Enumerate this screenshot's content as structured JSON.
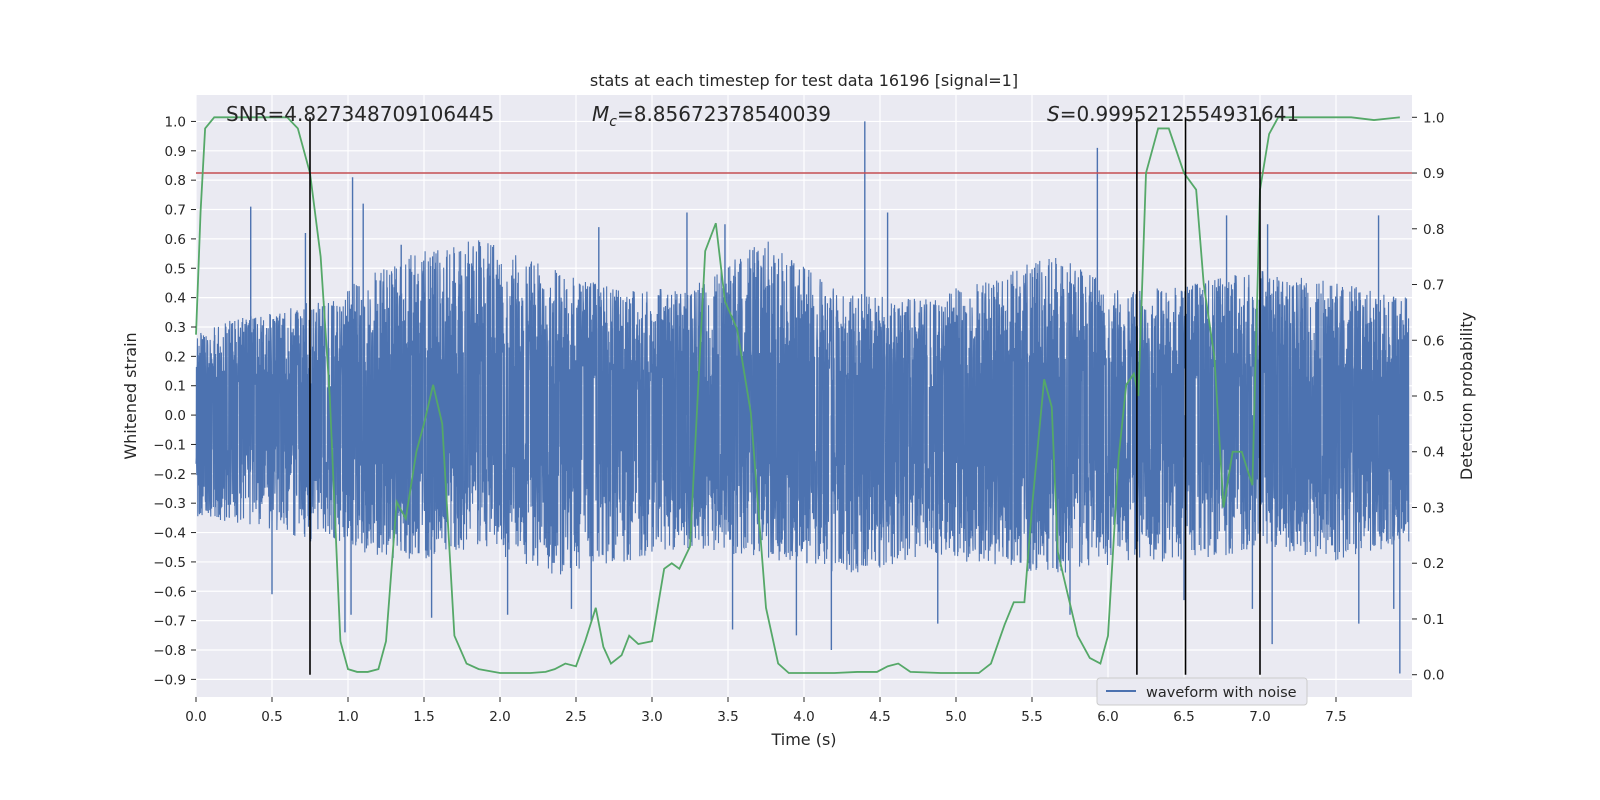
{
  "chart_data": {
    "type": "line",
    "title": "stats at each timestep for test data 16196 [signal=1]",
    "xlabel": "Time (s)",
    "ylabel": "Whitened strain",
    "y2label": "Detection probability",
    "xlim": [
      0.0,
      8.0
    ],
    "ylim": [
      -0.96,
      1.09
    ],
    "y2lim": [
      -0.04,
      1.04
    ],
    "xticks": [
      0.0,
      0.5,
      1.0,
      1.5,
      2.0,
      2.5,
      3.0,
      3.5,
      4.0,
      4.5,
      5.0,
      5.5,
      6.0,
      6.5,
      7.0,
      7.5
    ],
    "xtick_labels": [
      "0.0",
      "0.5",
      "1.0",
      "1.5",
      "2.0",
      "2.5",
      "3.0",
      "3.5",
      "4.0",
      "4.5",
      "5.0",
      "5.5",
      "6.0",
      "6.5",
      "7.0",
      "7.5"
    ],
    "yticks": [
      1.0,
      0.9,
      0.8,
      0.7,
      0.6,
      0.5,
      0.4,
      0.3,
      0.2,
      0.1,
      0.0,
      -0.1,
      -0.2,
      -0.3,
      -0.4,
      -0.5,
      -0.6,
      -0.7,
      -0.8,
      -0.9
    ],
    "ytick_labels": [
      "1.0",
      "0.9",
      "0.8",
      "0.7",
      "0.6",
      "0.5",
      "0.4",
      "0.3",
      "0.2",
      "0.1",
      "0.0",
      "−0.1",
      "−0.2",
      "−0.3",
      "−0.4",
      "−0.5",
      "−0.6",
      "−0.7",
      "−0.8",
      "−0.9"
    ],
    "y2ticks": [
      1.0,
      0.9,
      0.8,
      0.7,
      0.6,
      0.5,
      0.4,
      0.3,
      0.2,
      0.1,
      0.0
    ],
    "y2tick_labels": [
      "1.0",
      "0.9",
      "0.8",
      "0.7",
      "0.6",
      "0.5",
      "0.4",
      "0.3",
      "0.2",
      "0.1",
      "0.0"
    ],
    "grid": true,
    "legend": {
      "entries": [
        "waveform with noise"
      ],
      "placement": "lower-right"
    },
    "annotations": {
      "snr": "SNR=4.827348709106445",
      "mc_symbol": "M",
      "mc_sub": "c",
      "mc_value": "=8.85672378540039",
      "s_symbol": "S",
      "s_value": "=0.9995212554931641"
    },
    "threshold": {
      "axis": "right",
      "value": 0.9,
      "color": "#c44e52"
    },
    "vlines": [
      0.75,
      6.19,
      6.51,
      7.0
    ],
    "series": [
      {
        "name": "waveform with noise",
        "axis": "left",
        "color": "#4c72b0",
        "envelope_upper": [
          0.3,
          0.35,
          0.42,
          0.55,
          0.6,
          0.5,
          0.42,
          0.45,
          0.6,
          0.42,
          0.4,
          0.45,
          0.55,
          0.42,
          0.45,
          0.5,
          0.45,
          0.4
        ],
        "envelope_lower": [
          -0.35,
          -0.4,
          -0.45,
          -0.5,
          -0.45,
          -0.55,
          -0.5,
          -0.45,
          -0.5,
          -0.55,
          -0.5,
          -0.5,
          -0.55,
          -0.5,
          -0.5,
          -0.45,
          -0.5,
          -0.45
        ],
        "spikes": [
          [
            0.36,
            0.71
          ],
          [
            0.72,
            0.62
          ],
          [
            1.03,
            0.81
          ],
          [
            1.1,
            0.72
          ],
          [
            1.35,
            0.58
          ],
          [
            2.65,
            0.64
          ],
          [
            3.23,
            0.69
          ],
          [
            3.48,
            0.65
          ],
          [
            4.4,
            1.0
          ],
          [
            4.55,
            0.69
          ],
          [
            5.93,
            0.91
          ],
          [
            6.78,
            0.68
          ],
          [
            7.05,
            0.65
          ],
          [
            7.78,
            0.68
          ],
          [
            0.5,
            -0.61
          ],
          [
            0.98,
            -0.74
          ],
          [
            1.02,
            -0.68
          ],
          [
            1.55,
            -0.69
          ],
          [
            2.05,
            -0.68
          ],
          [
            2.47,
            -0.66
          ],
          [
            2.6,
            -0.7
          ],
          [
            3.53,
            -0.73
          ],
          [
            3.95,
            -0.75
          ],
          [
            4.18,
            -0.8
          ],
          [
            4.88,
            -0.71
          ],
          [
            5.75,
            -0.68
          ],
          [
            6.5,
            -0.63
          ],
          [
            6.95,
            -0.66
          ],
          [
            7.08,
            -0.78
          ],
          [
            7.65,
            -0.71
          ],
          [
            7.92,
            -0.88
          ],
          [
            7.88,
            -0.66
          ]
        ]
      },
      {
        "name": "",
        "axis": "right",
        "color": "#55a868",
        "x": [
          0.0,
          0.03,
          0.06,
          0.12,
          0.2,
          0.3,
          0.4,
          0.5,
          0.6,
          0.67,
          0.75,
          0.82,
          0.88,
          0.95,
          1.0,
          1.06,
          1.13,
          1.2,
          1.25,
          1.32,
          1.38,
          1.45,
          1.5,
          1.56,
          1.62,
          1.7,
          1.78,
          1.86,
          2.0,
          2.2,
          2.3,
          2.36,
          2.43,
          2.5,
          2.56,
          2.63,
          2.68,
          2.73,
          2.8,
          2.85,
          2.91,
          3.0,
          3.08,
          3.13,
          3.18,
          3.25,
          3.35,
          3.42,
          3.48,
          3.56,
          3.65,
          3.75,
          3.83,
          3.9,
          4.0,
          4.2,
          4.35,
          4.48,
          4.55,
          4.62,
          4.7,
          4.9,
          5.0,
          5.15,
          5.23,
          5.32,
          5.38,
          5.45,
          5.5,
          5.58,
          5.63,
          5.67,
          5.73,
          5.8,
          5.88,
          5.95,
          6.0,
          6.07,
          6.12,
          6.17,
          6.2,
          6.25,
          6.33,
          6.4,
          6.5,
          6.58,
          6.63,
          6.7,
          6.76,
          6.82,
          6.88,
          6.95,
          7.0,
          7.06,
          7.12,
          7.2,
          7.35,
          7.6,
          7.75,
          7.92
        ],
        "y": [
          0.61,
          0.83,
          0.98,
          1.0,
          1.0,
          1.0,
          1.0,
          1.0,
          1.0,
          0.98,
          0.9,
          0.75,
          0.5,
          0.06,
          0.01,
          0.005,
          0.005,
          0.01,
          0.06,
          0.31,
          0.28,
          0.4,
          0.45,
          0.52,
          0.45,
          0.07,
          0.02,
          0.01,
          0.003,
          0.003,
          0.005,
          0.01,
          0.02,
          0.015,
          0.06,
          0.12,
          0.05,
          0.02,
          0.035,
          0.07,
          0.055,
          0.06,
          0.19,
          0.2,
          0.19,
          0.23,
          0.76,
          0.81,
          0.67,
          0.62,
          0.47,
          0.12,
          0.02,
          0.003,
          0.003,
          0.003,
          0.005,
          0.005,
          0.015,
          0.02,
          0.005,
          0.003,
          0.003,
          0.003,
          0.02,
          0.09,
          0.13,
          0.13,
          0.3,
          0.53,
          0.48,
          0.22,
          0.15,
          0.07,
          0.03,
          0.02,
          0.07,
          0.39,
          0.52,
          0.54,
          0.5,
          0.9,
          0.98,
          0.98,
          0.9,
          0.87,
          0.7,
          0.57,
          0.3,
          0.4,
          0.4,
          0.34,
          0.87,
          0.97,
          1.0,
          1.0,
          1.0,
          1.0,
          0.995,
          1.0
        ]
      }
    ]
  }
}
